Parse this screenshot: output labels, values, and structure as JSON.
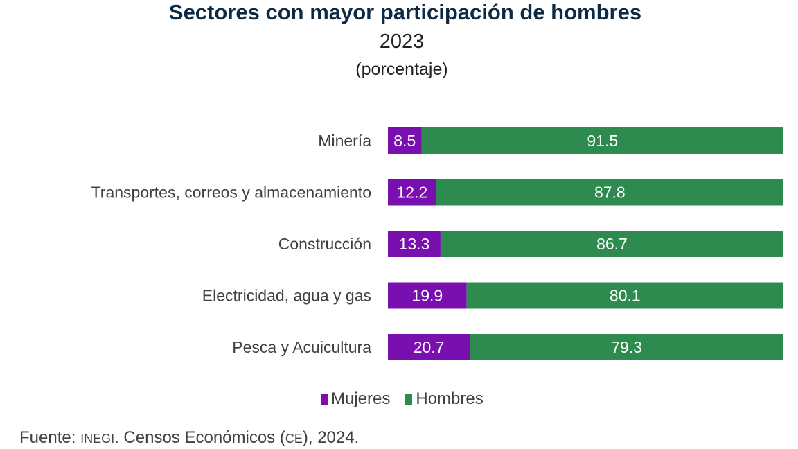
{
  "chart_data": {
    "type": "bar",
    "orientation": "horizontal",
    "stacked": true,
    "title": "Sectores con mayor participación de hombres",
    "subtitle": "2023",
    "unit_label": "(porcentaje)",
    "categories": [
      "Minería",
      "Transportes, correos y almacenamiento",
      "Construcción",
      "Electricidad, agua y gas",
      "Pesca y Acuicultura"
    ],
    "series": [
      {
        "name": "Mujeres",
        "color": "#7a0fb0",
        "values": [
          8.5,
          12.2,
          13.3,
          19.9,
          20.7
        ]
      },
      {
        "name": "Hombres",
        "color": "#2e8b4f",
        "values": [
          91.5,
          87.8,
          86.7,
          80.1,
          79.3
        ]
      }
    ],
    "xlim": [
      0,
      100
    ],
    "grid": false,
    "legend": "bottom",
    "source_prefix": "Fuente:",
    "source_org": "INEGI",
    "source_text": ". Censos Económicos (",
    "source_abbr": "CE",
    "source_end": "), 2024."
  }
}
